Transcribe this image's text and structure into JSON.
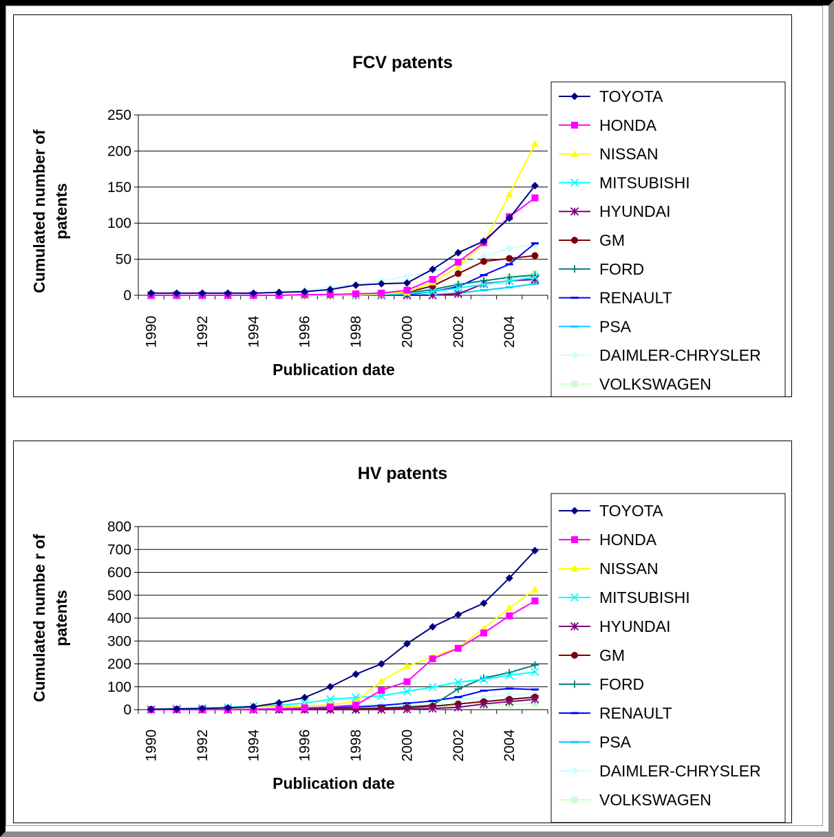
{
  "chart_data": [
    {
      "type": "line",
      "title": "FCV patents",
      "xlabel": "Publication date",
      "ylabel": "Cumulated number of patents",
      "x": [
        1990,
        1991,
        1992,
        1993,
        1994,
        1995,
        1996,
        1997,
        1998,
        1999,
        2000,
        2001,
        2002,
        2003,
        2004,
        2005
      ],
      "x_tick_labels": [
        "1990",
        "1992",
        "1994",
        "1996",
        "1998",
        "2000",
        "2002",
        "2004"
      ],
      "ylim": [
        0,
        250
      ],
      "yticks": [
        0,
        50,
        100,
        150,
        200,
        250
      ],
      "grid": "horizontal",
      "legend_position": "right",
      "series": [
        {
          "name": "TOYOTA",
          "color": "#000080",
          "marker": "diamond",
          "values": [
            3,
            3,
            3,
            3,
            3,
            4,
            5,
            8,
            14,
            16,
            17,
            36,
            59,
            75,
            107,
            152
          ]
        },
        {
          "name": "HONDA",
          "color": "#FF00FF",
          "marker": "square",
          "values": [
            0,
            0,
            0,
            0,
            0,
            0,
            1,
            1,
            2,
            3,
            7,
            22,
            46,
            73,
            109,
            135
          ]
        },
        {
          "name": "NISSAN",
          "color": "#FFFF00",
          "marker": "triangle",
          "values": [
            0,
            0,
            0,
            0,
            0,
            0,
            0,
            0,
            1,
            2,
            4,
            18,
            40,
            72,
            140,
            210
          ]
        },
        {
          "name": "MITSUBISHI",
          "color": "#00FFFF",
          "marker": "x",
          "values": [
            0,
            0,
            0,
            0,
            0,
            0,
            0,
            0,
            0,
            1,
            2,
            5,
            10,
            15,
            20,
            25
          ]
        },
        {
          "name": "HYUNDAI",
          "color": "#800080",
          "marker": "star",
          "values": [
            0,
            0,
            0,
            0,
            0,
            0,
            0,
            0,
            0,
            0,
            0,
            0,
            2,
            16,
            20,
            22
          ]
        },
        {
          "name": "GM",
          "color": "#800000",
          "marker": "circle",
          "values": [
            0,
            0,
            0,
            0,
            0,
            0,
            0,
            1,
            1,
            2,
            4,
            13,
            30,
            47,
            51,
            55
          ]
        },
        {
          "name": "FORD",
          "color": "#008080",
          "marker": "plus",
          "values": [
            0,
            0,
            0,
            0,
            0,
            0,
            0,
            0,
            1,
            2,
            3,
            8,
            15,
            20,
            25,
            28
          ]
        },
        {
          "name": "RENAULT",
          "color": "#0000FF",
          "marker": "dash",
          "values": [
            0,
            0,
            0,
            0,
            0,
            0,
            0,
            0,
            0,
            0,
            1,
            5,
            12,
            28,
            43,
            72
          ]
        },
        {
          "name": "PSA",
          "color": "#00CCFF",
          "marker": "dash",
          "values": [
            0,
            0,
            0,
            0,
            0,
            0,
            0,
            0,
            0,
            0,
            0,
            1,
            3,
            7,
            11,
            16
          ]
        },
        {
          "name": "DAIMLER-CHRYSLER",
          "color": "#CCFFFF",
          "marker": "diamond",
          "values": [
            0,
            0,
            0,
            0,
            2,
            5,
            7,
            11,
            15,
            20,
            26,
            33,
            42,
            54,
            65,
            70
          ]
        },
        {
          "name": "VOLKSWAGEN",
          "color": "#CCFFCC",
          "marker": "square",
          "values": [
            0,
            0,
            0,
            0,
            0,
            0,
            1,
            2,
            2,
            3,
            4,
            8,
            15,
            20,
            25,
            30
          ]
        }
      ]
    },
    {
      "type": "line",
      "title": "HV patents",
      "xlabel": "Publication date",
      "ylabel": "Cumulated numbe r of patents",
      "x": [
        1990,
        1991,
        1992,
        1993,
        1994,
        1995,
        1996,
        1997,
        1998,
        1999,
        2000,
        2001,
        2002,
        2003,
        2004,
        2005
      ],
      "x_tick_labels": [
        "1990",
        "1992",
        "1994",
        "1996",
        "1998",
        "2000",
        "2002",
        "2004"
      ],
      "ylim": [
        0,
        800
      ],
      "yticks": [
        0,
        100,
        200,
        300,
        400,
        500,
        600,
        700,
        800
      ],
      "grid": "horizontal",
      "legend_position": "right",
      "series": [
        {
          "name": "TOYOTA",
          "color": "#000080",
          "marker": "diamond",
          "values": [
            2,
            3,
            5,
            8,
            13,
            30,
            53,
            100,
            155,
            200,
            288,
            362,
            415,
            465,
            575,
            695
          ]
        },
        {
          "name": "HONDA",
          "color": "#FF00FF",
          "marker": "square",
          "values": [
            0,
            0,
            0,
            0,
            2,
            5,
            8,
            12,
            20,
            85,
            122,
            222,
            268,
            335,
            410,
            475
          ]
        },
        {
          "name": "NISSAN",
          "color": "#FFFF00",
          "marker": "triangle",
          "values": [
            2,
            3,
            5,
            7,
            10,
            13,
            16,
            22,
            35,
            125,
            190,
            230,
            270,
            355,
            445,
            525
          ]
        },
        {
          "name": "MITSUBISHI",
          "color": "#00FFFF",
          "marker": "x",
          "values": [
            2,
            5,
            7,
            10,
            15,
            20,
            28,
            45,
            53,
            60,
            80,
            98,
            120,
            133,
            150,
            165
          ]
        },
        {
          "name": "HYUNDAI",
          "color": "#800080",
          "marker": "star",
          "values": [
            0,
            0,
            0,
            0,
            0,
            0,
            0,
            0,
            0,
            0,
            2,
            5,
            10,
            25,
            35,
            45
          ]
        },
        {
          "name": "GM",
          "color": "#800000",
          "marker": "circle",
          "values": [
            0,
            0,
            0,
            0,
            0,
            0,
            1,
            2,
            3,
            5,
            8,
            15,
            25,
            35,
            45,
            55
          ]
        },
        {
          "name": "FORD",
          "color": "#008080",
          "marker": "plus",
          "values": [
            0,
            0,
            0,
            0,
            0,
            1,
            2,
            3,
            5,
            8,
            12,
            20,
            90,
            138,
            162,
            195
          ]
        },
        {
          "name": "RENAULT",
          "color": "#0000FF",
          "marker": "dash",
          "values": [
            0,
            0,
            0,
            0,
            1,
            3,
            5,
            8,
            12,
            18,
            28,
            38,
            55,
            83,
            92,
            88
          ]
        },
        {
          "name": "PSA",
          "color": "#00CCFF",
          "marker": "dash",
          "values": [
            0,
            0,
            0,
            0,
            0,
            1,
            2,
            3,
            5,
            7,
            10,
            15,
            25,
            35,
            45,
            55
          ]
        },
        {
          "name": "DAIMLER-CHRYSLER",
          "color": "#CCFFFF",
          "marker": "diamond",
          "values": [
            0,
            0,
            0,
            0,
            2,
            5,
            8,
            12,
            18,
            22,
            28,
            35,
            45,
            55,
            65,
            70
          ]
        },
        {
          "name": "VOLKSWAGEN",
          "color": "#CCFFCC",
          "marker": "square",
          "values": [
            0,
            0,
            0,
            0,
            1,
            2,
            3,
            5,
            7,
            9,
            11,
            13,
            15,
            18,
            22,
            28
          ]
        }
      ]
    }
  ]
}
